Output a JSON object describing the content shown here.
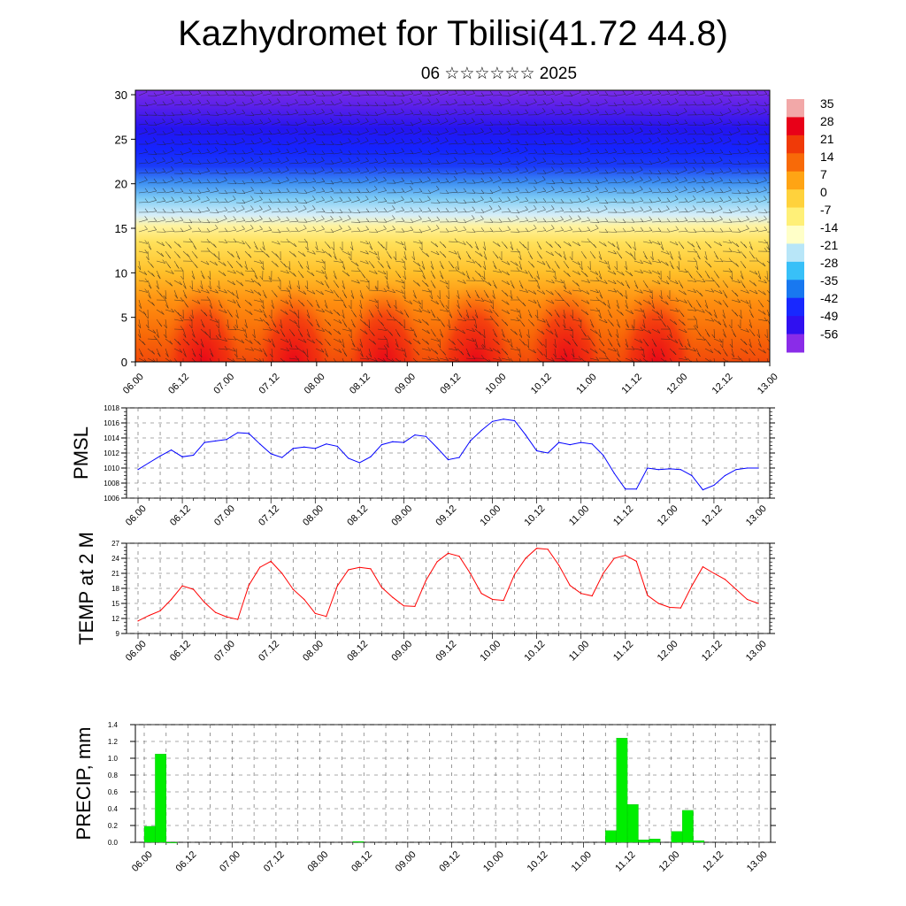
{
  "header": {
    "title": "Kazhydromet for Tbilisi(41.72 44.8)",
    "subtitle": "06 ☆☆☆☆☆☆ 2025"
  },
  "chart_data": [
    {
      "type": "heatmap",
      "name_hint": "vertical temperature cross-section with wind barbs",
      "x_tick_labels": [
        "06.00",
        "06.12",
        "07.00",
        "07.12",
        "08.00",
        "08.12",
        "09.00",
        "09.12",
        "10.00",
        "10.12",
        "11.00",
        "11.12",
        "12.00",
        "12.12",
        "13.00"
      ],
      "y_ticks": [
        0,
        5,
        10,
        15,
        20,
        25,
        30
      ],
      "ylim": [
        0,
        30.5
      ],
      "colorbar_labels": [
        "35",
        "28",
        "21",
        "14",
        "7",
        "0",
        "-7",
        "-14",
        "-21",
        "-28",
        "-35",
        "-42",
        "-49",
        "-56"
      ],
      "colorbar_colors": [
        "#f2a8a8",
        "#e80018",
        "#f03a08",
        "#f86a08",
        "#ffa414",
        "#ffd23c",
        "#fff078",
        "#ffffc8",
        "#b8e6f8",
        "#38c0f8",
        "#1878f0",
        "#1828ff",
        "#3010f0",
        "#8a2ce8"
      ],
      "surface_temp_peaks_x": [
        "06.18",
        "07.18",
        "08.18",
        "09.18",
        "10.18",
        "11.18"
      ]
    },
    {
      "type": "line",
      "ylabel": "PMSL",
      "ylim": [
        1006,
        1018
      ],
      "y_ticks": [
        1006,
        1008,
        1010,
        1012,
        1014,
        1016,
        1018
      ],
      "x_tick_labels": [
        "06.00",
        "06.12",
        "07.00",
        "07.12",
        "08.00",
        "08.12",
        "09.00",
        "09.12",
        "10.00",
        "10.12",
        "11.00",
        "11.12",
        "12.00",
        "12.12",
        "13.00"
      ],
      "x_hours": [
        0,
        3,
        6,
        9,
        12,
        15,
        18,
        21,
        24,
        27,
        30,
        33,
        36,
        39,
        42,
        45,
        48,
        51,
        54,
        57,
        60,
        63,
        66,
        69,
        72,
        75,
        78,
        81,
        84,
        87,
        90,
        93,
        96,
        99,
        102,
        105,
        108,
        111,
        114,
        117,
        120,
        123,
        126,
        129,
        132,
        135,
        138,
        141,
        144,
        147,
        150,
        153,
        156,
        159,
        162,
        165,
        168
      ],
      "values": [
        1009.8,
        1010.7,
        1011.6,
        1012.4,
        1011.5,
        1011.7,
        1013.4,
        1013.6,
        1013.8,
        1014.7,
        1014.6,
        1013.2,
        1011.9,
        1011.4,
        1012.6,
        1012.8,
        1012.6,
        1013.2,
        1012.9,
        1011.3,
        1010.7,
        1011.5,
        1013.1,
        1013.5,
        1013.4,
        1014.4,
        1014.2,
        1012.7,
        1011.1,
        1011.4,
        1013.6,
        1015.0,
        1016.2,
        1016.5,
        1016.3,
        1014.4,
        1012.3,
        1012.0,
        1013.4,
        1013.1,
        1013.4,
        1013.2,
        1011.7,
        1009.3,
        1007.2,
        1007.2,
        1010.0,
        1009.8,
        1009.9,
        1009.8,
        1009.0,
        1007.1,
        1007.7,
        1009.0,
        1009.8,
        1010.0,
        1010.0
      ],
      "color": "#0000ff"
    },
    {
      "type": "line",
      "ylabel": "TEMP at 2 M",
      "ylim": [
        9,
        27
      ],
      "y_ticks": [
        9,
        12,
        15,
        18,
        21,
        24,
        27
      ],
      "x_tick_labels": [
        "06.00",
        "06.12",
        "07.00",
        "07.12",
        "08.00",
        "08.12",
        "09.00",
        "09.12",
        "10.00",
        "10.12",
        "11.00",
        "11.12",
        "12.00",
        "12.12",
        "13.00"
      ],
      "x_hours": [
        0,
        3,
        6,
        9,
        12,
        15,
        18,
        21,
        24,
        27,
        30,
        33,
        36,
        39,
        42,
        45,
        48,
        51,
        54,
        57,
        60,
        63,
        66,
        69,
        72,
        75,
        78,
        81,
        84,
        87,
        90,
        93,
        96,
        99,
        102,
        105,
        108,
        111,
        114,
        117,
        120,
        123,
        126,
        129,
        132,
        135,
        138,
        141,
        144,
        147,
        150,
        153,
        156,
        159,
        162,
        165,
        168
      ],
      "values": [
        11.5,
        12.6,
        13.5,
        15.8,
        18.5,
        17.8,
        15.2,
        13.2,
        12.3,
        11.8,
        18.6,
        22.2,
        23.4,
        21.0,
        17.8,
        15.8,
        13.0,
        12.4,
        18.5,
        21.7,
        22.2,
        21.9,
        18.2,
        16.2,
        14.5,
        14.4,
        19.6,
        23.3,
        25.0,
        24.4,
        21.0,
        17.0,
        15.8,
        15.6,
        20.8,
        24.0,
        26.0,
        25.8,
        22.6,
        18.6,
        17.0,
        16.5,
        21.0,
        24.0,
        24.6,
        23.4,
        16.6,
        15.0,
        14.2,
        14.1,
        18.5,
        22.3,
        21.0,
        19.8,
        17.8,
        15.8,
        15.0
      ],
      "color": "#ff0000"
    },
    {
      "type": "bar",
      "ylabel": "PRECIP, mm",
      "ylim": [
        0,
        1.4
      ],
      "y_ticks": [
        "0.0",
        "0.2",
        "0.4",
        "0.6",
        "0.8",
        "1.0",
        "1.2",
        "1.4"
      ],
      "x_tick_labels": [
        "06.00",
        "06.12",
        "07.00",
        "07.12",
        "08.00",
        "08.12",
        "09.00",
        "09.12",
        "10.00",
        "10.12",
        "11.00",
        "11.12",
        "12.00",
        "12.12",
        "13.00"
      ],
      "x_hours": [
        3,
        6,
        9,
        60,
        129,
        132,
        135,
        138,
        141,
        147,
        150,
        153
      ],
      "values": [
        0.19,
        1.05,
        0.0,
        0.01,
        0.14,
        1.24,
        0.45,
        0.03,
        0.04,
        0.13,
        0.38,
        0.02
      ],
      "color": "#00ee00"
    }
  ]
}
